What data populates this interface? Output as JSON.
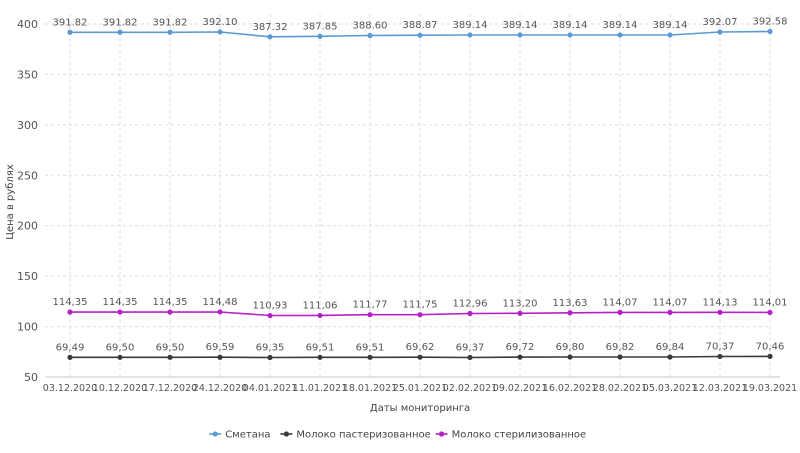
{
  "chart_data": {
    "type": "line",
    "xlabel": "Даты мониторинга",
    "ylabel": "Цена в рублях",
    "ylim": [
      50,
      400
    ],
    "yticks": [
      50,
      100,
      150,
      200,
      250,
      300,
      350,
      400
    ],
    "grid": true,
    "legend_position": "bottom",
    "categories": [
      "03.12.2020",
      "10.12.2020",
      "17.12.2020",
      "24.12.2020",
      "04.01.2021",
      "11.01.2021",
      "18.01.2021",
      "25.01.2021",
      "02.02.2021",
      "09.02.2021",
      "16.02.2021",
      "28.02.2021",
      "05.03.2021",
      "12.03.2021",
      "19.03.2021"
    ],
    "series": [
      {
        "name": "Сметана",
        "color": "#5b9bd5",
        "values": [
          391.82,
          391.82,
          391.82,
          392.1,
          387.32,
          387.85,
          388.6,
          388.87,
          389.14,
          389.14,
          389.14,
          389.14,
          389.14,
          392.07,
          392.58
        ],
        "labels": [
          "391.82",
          "391.82",
          "391.82",
          "392.10",
          "387.32",
          "387.85",
          "388.60",
          "388.87",
          "389.14",
          "389.14",
          "389.14",
          "389.14",
          "389.14",
          "392.07",
          "392.58"
        ]
      },
      {
        "name": "Молоко пастеризованное",
        "color": "#3a3a3a",
        "values": [
          69.49,
          69.5,
          69.5,
          69.59,
          69.35,
          69.51,
          69.51,
          69.62,
          69.37,
          69.72,
          69.8,
          69.82,
          69.84,
          70.37,
          70.46
        ],
        "labels": [
          "69,49",
          "69,50",
          "69,50",
          "69,59",
          "69,35",
          "69,51",
          "69,51",
          "69,62",
          "69,37",
          "69,72",
          "69,80",
          "69,82",
          "69,84",
          "70,37",
          "70,46"
        ]
      },
      {
        "name": "Молоко стерилизованное",
        "color": "#b620c8",
        "values": [
          114.35,
          114.35,
          114.35,
          114.48,
          110.93,
          111.06,
          111.77,
          111.75,
          112.96,
          113.2,
          113.63,
          114.07,
          114.07,
          114.13,
          114.01
        ],
        "labels": [
          "114,35",
          "114,35",
          "114,35",
          "114,48",
          "110,93",
          "111,06",
          "111,77",
          "111,75",
          "112,96",
          "113,20",
          "113,63",
          "114,07",
          "114,07",
          "114,13",
          "114,01"
        ]
      }
    ]
  }
}
